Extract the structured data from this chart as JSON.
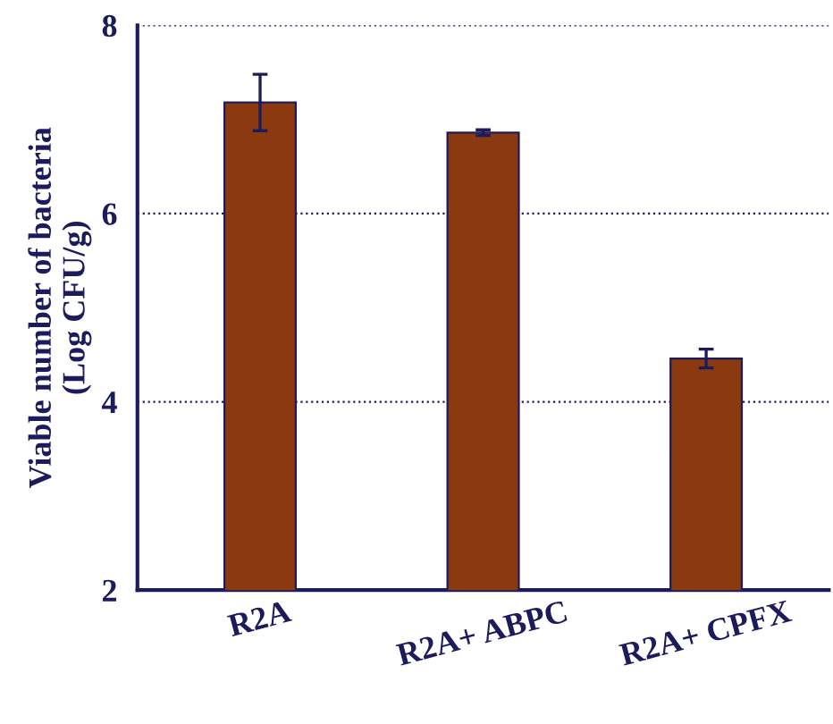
{
  "chart_data": {
    "type": "bar",
    "ylabel": "Viable number of bacteria\n(Log CFU/g)",
    "categories": [
      "R2A",
      "R2A+ ABPC",
      "R2A+ CPFX"
    ],
    "values": [
      7.18,
      6.86,
      4.46
    ],
    "errors": [
      0.3,
      0.03,
      0.1
    ],
    "color": "#8b3a0f",
    "ylim": [
      2,
      8
    ],
    "yticks": [
      2,
      4,
      6,
      8
    ],
    "grid": "y"
  }
}
